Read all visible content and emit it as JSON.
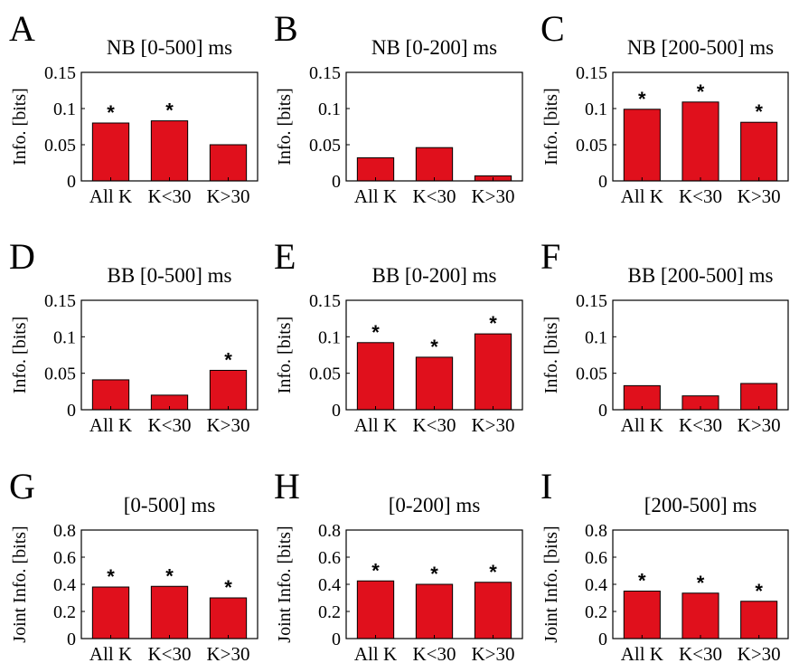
{
  "chart_data": [
    {
      "type": "bar",
      "panel_label": "A",
      "title": "NB [0-500] ms",
      "ylabel": "Info. [bits]",
      "categories": [
        "All K",
        "K<30",
        "K>30"
      ],
      "values": [
        0.08,
        0.083,
        0.05
      ],
      "significant": [
        true,
        true,
        false
      ],
      "ylim": [
        0,
        0.15
      ],
      "yticks": [
        "0",
        "0.05",
        "0.1",
        "0.15"
      ],
      "ytick_values": [
        0,
        0.05,
        0.1,
        0.15
      ],
      "bar_color": "#e0101c"
    },
    {
      "type": "bar",
      "panel_label": "B",
      "title": "NB [0-200] ms",
      "ylabel": "Info. [bits]",
      "categories": [
        "All K",
        "K<30",
        "K>30"
      ],
      "values": [
        0.032,
        0.046,
        0.007
      ],
      "significant": [
        false,
        false,
        false
      ],
      "ylim": [
        0,
        0.15
      ],
      "yticks": [
        "0",
        "0.05",
        "0.1",
        "0.15"
      ],
      "ytick_values": [
        0,
        0.05,
        0.1,
        0.15
      ],
      "bar_color": "#e0101c"
    },
    {
      "type": "bar",
      "panel_label": "C",
      "title": "NB [200-500] ms",
      "ylabel": "Info. [bits]",
      "categories": [
        "All K",
        "K<30",
        "K>30"
      ],
      "values": [
        0.099,
        0.109,
        0.081
      ],
      "significant": [
        true,
        true,
        true
      ],
      "ylim": [
        0,
        0.15
      ],
      "yticks": [
        "0",
        "0.05",
        "0.1",
        "0.15"
      ],
      "ytick_values": [
        0,
        0.05,
        0.1,
        0.15
      ],
      "bar_color": "#e0101c"
    },
    {
      "type": "bar",
      "panel_label": "D",
      "title": "BB [0-500] ms",
      "ylabel": "Info. [bits]",
      "categories": [
        "All K",
        "K<30",
        "K>30"
      ],
      "values": [
        0.041,
        0.02,
        0.054
      ],
      "significant": [
        false,
        false,
        true
      ],
      "ylim": [
        0,
        0.15
      ],
      "yticks": [
        "0",
        "0.05",
        "0.1",
        "0.15"
      ],
      "ytick_values": [
        0,
        0.05,
        0.1,
        0.15
      ],
      "bar_color": "#e0101c"
    },
    {
      "type": "bar",
      "panel_label": "E",
      "title": "BB [0-200] ms",
      "ylabel": "Info. [bits]",
      "categories": [
        "All K",
        "K<30",
        "K>30"
      ],
      "values": [
        0.092,
        0.072,
        0.104
      ],
      "significant": [
        true,
        true,
        true
      ],
      "ylim": [
        0,
        0.15
      ],
      "yticks": [
        "0",
        "0.05",
        "0.1",
        "0.15"
      ],
      "ytick_values": [
        0,
        0.05,
        0.1,
        0.15
      ],
      "bar_color": "#e0101c"
    },
    {
      "type": "bar",
      "panel_label": "F",
      "title": "BB [200-500] ms",
      "ylabel": "Info. [bits]",
      "categories": [
        "All K",
        "K<30",
        "K>30"
      ],
      "values": [
        0.033,
        0.019,
        0.036
      ],
      "significant": [
        false,
        false,
        false
      ],
      "ylim": [
        0,
        0.15
      ],
      "yticks": [
        "0",
        "0.05",
        "0.1",
        "0.15"
      ],
      "ytick_values": [
        0,
        0.05,
        0.1,
        0.15
      ],
      "bar_color": "#e0101c"
    },
    {
      "type": "bar",
      "panel_label": "G",
      "title": "[0-500] ms",
      "ylabel": "Joint Info. [bits]",
      "categories": [
        "All K",
        "K<30",
        "K>30"
      ],
      "values": [
        0.38,
        0.385,
        0.3
      ],
      "significant": [
        true,
        true,
        true
      ],
      "ylim": [
        0,
        0.8
      ],
      "yticks": [
        "0",
        "0.2",
        "0.4",
        "0.6",
        "0.8"
      ],
      "ytick_values": [
        0,
        0.2,
        0.4,
        0.6,
        0.8
      ],
      "bar_color": "#e0101c"
    },
    {
      "type": "bar",
      "panel_label": "H",
      "title": "[0-200] ms",
      "ylabel": "Joint Info. [bits]",
      "categories": [
        "All K",
        "K<30",
        "K>30"
      ],
      "values": [
        0.425,
        0.4,
        0.415
      ],
      "significant": [
        true,
        true,
        true
      ],
      "ylim": [
        0,
        0.8
      ],
      "yticks": [
        "0",
        "0.2",
        "0.4",
        "0.6",
        "0.8"
      ],
      "ytick_values": [
        0,
        0.2,
        0.4,
        0.6,
        0.8
      ],
      "bar_color": "#e0101c"
    },
    {
      "type": "bar",
      "panel_label": "I",
      "title": "[200-500] ms",
      "ylabel": "Joint Info. [bits]",
      "categories": [
        "All K",
        "K<30",
        "K>30"
      ],
      "values": [
        0.35,
        0.335,
        0.275
      ],
      "significant": [
        true,
        true,
        true
      ],
      "ylim": [
        0,
        0.8
      ],
      "yticks": [
        "0",
        "0.2",
        "0.4",
        "0.6",
        "0.8"
      ],
      "ytick_values": [
        0,
        0.2,
        0.4,
        0.6,
        0.8
      ],
      "bar_color": "#e0101c"
    }
  ],
  "significance_marker": "*"
}
